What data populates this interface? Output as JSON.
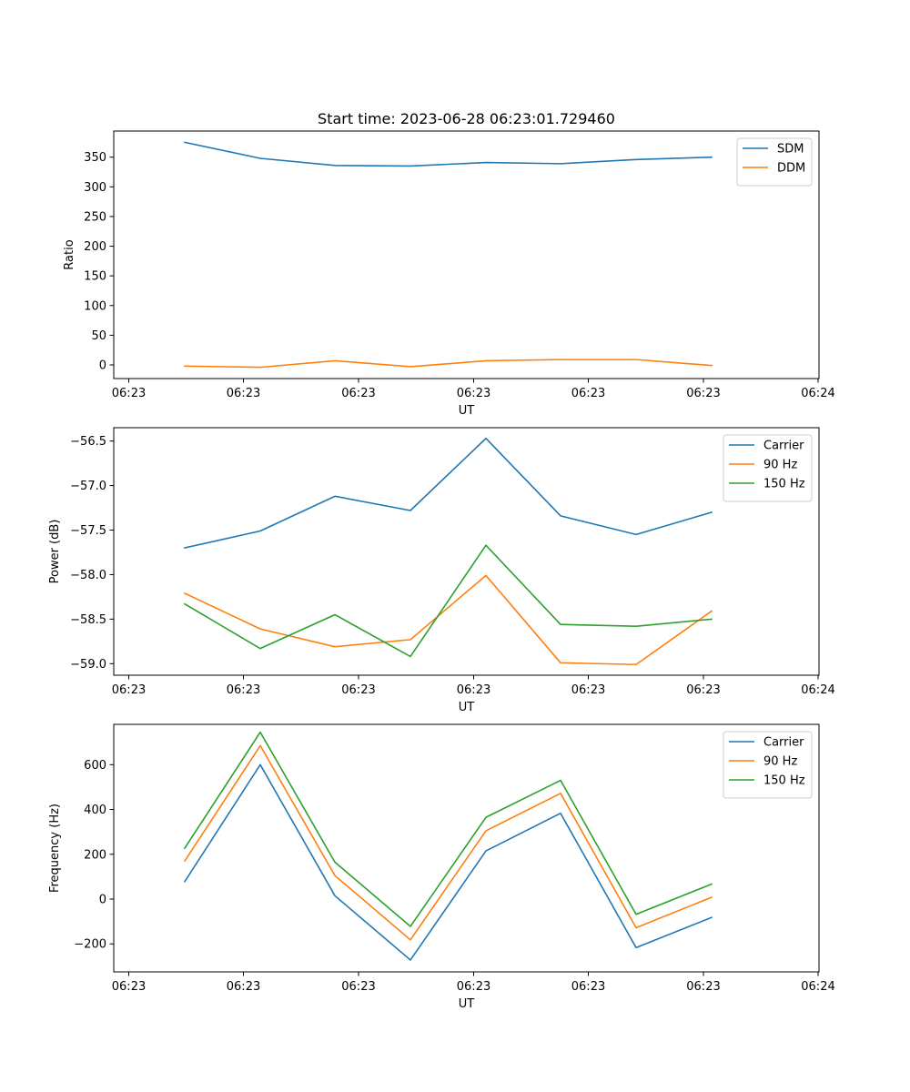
{
  "figure": {
    "title": "Start time: 2023-06-28 06:23:01.729460"
  },
  "chart_data": [
    {
      "type": "line",
      "title": "Start time: 2023-06-28 06:23:01.729460",
      "xlabel": "UT",
      "ylabel": "Ratio",
      "x_ticks": [
        "06:23",
        "06:23",
        "06:23",
        "06:23",
        "06:23",
        "06:23",
        "06:24"
      ],
      "y_ticks": [
        0,
        50,
        100,
        150,
        200,
        250,
        300,
        350
      ],
      "y_tick_labels": [
        "0",
        "50",
        "100",
        "150",
        "200",
        "250",
        "300",
        "350"
      ],
      "ylim": [
        -23,
        394
      ],
      "grid": false,
      "legend_position": "upper-right",
      "series": [
        {
          "name": "SDM",
          "color": "#1f77b4",
          "values": [
            375,
            348,
            336,
            335,
            341,
            339,
            346,
            350
          ]
        },
        {
          "name": "DDM",
          "color": "#ff7f0e",
          "values": [
            -2,
            -4,
            7,
            -3,
            7,
            9,
            9,
            -1
          ]
        }
      ]
    },
    {
      "type": "line",
      "xlabel": "UT",
      "ylabel": "Power (dB)",
      "x_ticks": [
        "06:23",
        "06:23",
        "06:23",
        "06:23",
        "06:23",
        "06:23",
        "06:24"
      ],
      "y_ticks": [
        -59.0,
        -58.5,
        -58.0,
        -57.5,
        -57.0,
        -56.5
      ],
      "y_tick_labels": [
        "−59.0",
        "−58.5",
        "−58.0",
        "−57.5",
        "−57.0",
        "−56.5"
      ],
      "ylim": [
        -59.13,
        -56.35
      ],
      "grid": false,
      "legend_position": "upper-right",
      "series": [
        {
          "name": "Carrier",
          "color": "#1f77b4",
          "values": [
            -57.7,
            -57.51,
            -57.12,
            -57.28,
            -56.47,
            -57.34,
            -57.55,
            -57.3
          ]
        },
        {
          "name": "90 Hz",
          "color": "#ff7f0e",
          "values": [
            -58.21,
            -58.61,
            -58.81,
            -58.73,
            -58.01,
            -58.99,
            -59.01,
            -58.41
          ]
        },
        {
          "name": "150 Hz",
          "color": "#2ca02c",
          "values": [
            -58.33,
            -58.83,
            -58.45,
            -58.92,
            -57.67,
            -58.56,
            -58.58,
            -58.5
          ]
        }
      ]
    },
    {
      "type": "line",
      "xlabel": "UT",
      "ylabel": "Frequency (Hz)",
      "x_ticks": [
        "06:23",
        "06:23",
        "06:23",
        "06:23",
        "06:23",
        "06:23",
        "06:24"
      ],
      "y_ticks": [
        -200,
        0,
        200,
        400,
        600
      ],
      "y_tick_labels": [
        "−200",
        "0",
        "200",
        "400",
        "600"
      ],
      "ylim": [
        -325,
        780
      ],
      "grid": false,
      "legend_position": "upper-right",
      "series": [
        {
          "name": "Carrier",
          "color": "#1f77b4",
          "values": [
            78,
            600,
            15,
            -272,
            215,
            383,
            -217,
            -82
          ]
        },
        {
          "name": "90 Hz",
          "color": "#ff7f0e",
          "values": [
            170,
            685,
            105,
            -182,
            305,
            472,
            -128,
            8
          ]
        },
        {
          "name": "150 Hz",
          "color": "#2ca02c",
          "values": [
            227,
            745,
            165,
            -122,
            365,
            530,
            -68,
            67
          ]
        }
      ]
    }
  ]
}
